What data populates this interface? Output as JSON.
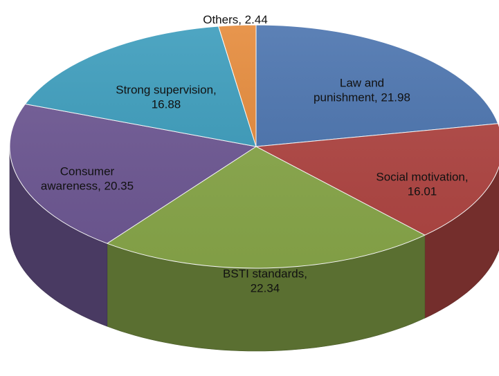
{
  "chart_data": {
    "type": "pie",
    "title": "",
    "three_d": true,
    "slices": [
      {
        "label": "Law and punishment",
        "value": 21.98,
        "color": "#4a73ae",
        "data_label": [
          "Law and",
          "punishment, 21.98"
        ]
      },
      {
        "label": "Social motivation",
        "value": 16.01,
        "color": "#b04542",
        "data_label": [
          "Social motivation,",
          "16.01"
        ]
      },
      {
        "label": "BSTI standards",
        "value": 22.34,
        "color": "#89a84a",
        "data_label": [
          "BSTI standards,",
          "22.34"
        ]
      },
      {
        "label": "Consumer awareness",
        "value": 20.35,
        "color": "#6e5894",
        "data_label": [
          "Consumer",
          "awareness, 20.35"
        ]
      },
      {
        "label": "Strong supervision",
        "value": 16.88,
        "color": "#3b9cbc",
        "data_label": [
          "Strong supervision,",
          "16.88"
        ]
      },
      {
        "label": "Others",
        "value": 2.44,
        "color": "#e58a3a",
        "data_label": [
          "Others, 2.44"
        ]
      }
    ]
  }
}
